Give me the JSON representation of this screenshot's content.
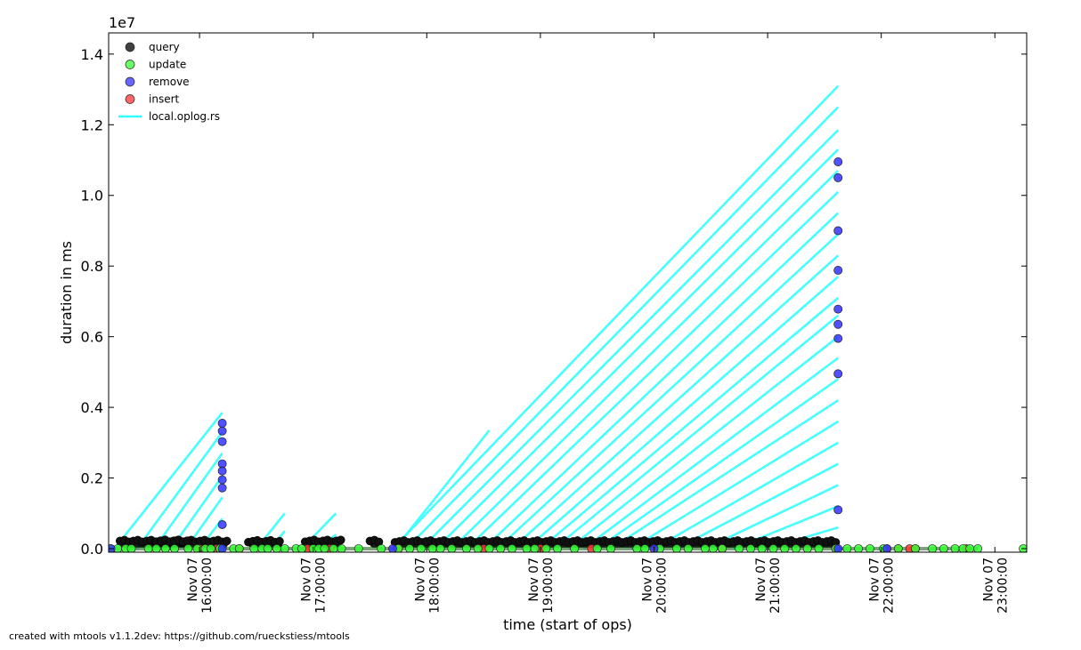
{
  "footer": "created with mtools v1.1.2dev: https://github.com/rueckstiess/mtools",
  "chart_data": {
    "type": "scatter",
    "title": "",
    "xlabel": "time (start of ops)",
    "ylabel": "duration in ms",
    "y_multiplier_label": "1e7",
    "x_tick_labels": [
      [
        "Nov 07",
        "16:00:00"
      ],
      [
        "Nov 07",
        "17:00:00"
      ],
      [
        "Nov 07",
        "18:00:00"
      ],
      [
        "Nov 07",
        "19:00:00"
      ],
      [
        "Nov 07",
        "20:00:00"
      ],
      [
        "Nov 07",
        "21:00:00"
      ],
      [
        "Nov 07",
        "22:00:00"
      ],
      [
        "Nov 07",
        "23:00:00"
      ]
    ],
    "x_ticks_hours": [
      16,
      17,
      18,
      19,
      20,
      21,
      22,
      23
    ],
    "xlim_hours": [
      15.2,
      23.28
    ],
    "y_tick_labels": [
      "0.0",
      "0.2",
      "0.4",
      "0.6",
      "0.8",
      "1.0",
      "1.2",
      "1.4"
    ],
    "y_ticks": [
      0.0,
      0.2,
      0.4,
      0.6,
      0.8,
      1.0,
      1.2,
      1.4
    ],
    "ylim": [
      -0.01,
      1.46
    ],
    "grid": false,
    "legend_position": "top-left",
    "series": [
      {
        "name": "query",
        "marker": "circle",
        "color": "#000000",
        "segments_hours": [
          [
            15.3,
            16.25
          ],
          [
            15.62,
            15.9
          ],
          [
            16.43,
            16.73
          ],
          [
            16.93,
            17.25
          ],
          [
            17.5,
            17.58
          ],
          [
            17.72,
            21.62
          ]
        ],
        "segment_value_approx": 0.02
      },
      {
        "name": "update",
        "marker": "circle",
        "color": "#33ff33",
        "x_hours": [
          15.22,
          15.28,
          15.35,
          15.4,
          15.55,
          15.62,
          15.7,
          15.78,
          15.9,
          15.98,
          16.05,
          16.1,
          16.18,
          16.3,
          16.35,
          16.48,
          16.55,
          16.6,
          16.68,
          16.75,
          16.85,
          16.9,
          17.0,
          17.05,
          17.1,
          17.18,
          17.25,
          17.4,
          17.6,
          17.75,
          17.85,
          17.95,
          18.05,
          18.12,
          18.22,
          18.35,
          18.45,
          18.55,
          18.65,
          18.75,
          18.88,
          18.95,
          19.05,
          19.15,
          19.3,
          19.5,
          19.62,
          19.85,
          19.92,
          20.05,
          20.2,
          20.3,
          20.45,
          20.52,
          20.6,
          20.75,
          20.85,
          20.95,
          21.05,
          21.15,
          21.25,
          21.35,
          21.45,
          21.6,
          21.7,
          21.8,
          21.9,
          22.02,
          22.15,
          22.3,
          22.45,
          22.55,
          22.65,
          22.72,
          22.78,
          22.85,
          23.25
        ],
        "values": [
          0,
          0,
          0,
          0,
          0,
          0,
          0,
          0,
          0,
          0,
          0,
          0,
          0,
          0,
          0,
          0,
          0,
          0,
          0,
          0,
          0,
          0,
          0,
          0,
          0,
          0,
          0,
          0,
          0,
          0,
          0,
          0,
          0,
          0,
          0,
          0,
          0,
          0,
          0,
          0,
          0,
          0,
          0,
          0,
          0,
          0,
          0,
          0,
          0,
          0,
          0,
          0,
          0,
          0,
          0,
          0,
          0,
          0,
          0,
          0,
          0,
          0,
          0,
          0,
          0,
          0,
          0,
          0,
          0,
          0,
          0,
          0,
          0,
          0,
          0,
          0,
          0
        ]
      },
      {
        "name": "remove",
        "marker": "circle",
        "color": "#3333ff",
        "x_hours": [
          16.2,
          16.2,
          16.2,
          16.2,
          16.2,
          16.2,
          16.2,
          16.2,
          16.2,
          21.62,
          21.62,
          21.62,
          21.62,
          21.62,
          21.62,
          21.62,
          21.62,
          21.62,
          21.62,
          15.22,
          17.7,
          20.0,
          22.05
        ],
        "values": [
          0.355,
          0.333,
          0.303,
          0.24,
          0.22,
          0.195,
          0.172,
          0.068,
          0.0,
          1.095,
          1.05,
          0.9,
          0.788,
          0.678,
          0.635,
          0.595,
          0.495,
          0.11,
          0.0,
          0.0,
          0.0,
          0.0,
          0.0
        ]
      },
      {
        "name": "insert",
        "marker": "circle",
        "color": "#ff3333",
        "x_hours": [
          16.0,
          16.15,
          16.35,
          16.95,
          17.15,
          17.75,
          18.5,
          19.0,
          19.45,
          20.6,
          21.6,
          22.05,
          22.15,
          22.25,
          22.3,
          22.75
        ],
        "values": [
          0,
          0,
          0,
          0,
          0,
          0,
          0,
          0,
          0,
          0,
          0,
          0,
          0,
          0,
          0,
          0
        ]
      },
      {
        "name": "local.oplog.rs",
        "marker": "line",
        "color": "#33ffff",
        "lines_hours": [
          [
            15.25,
            16.2,
            0.385
          ],
          [
            15.45,
            16.2,
            0.33
          ],
          [
            15.6,
            16.2,
            0.27
          ],
          [
            15.75,
            16.2,
            0.205
          ],
          [
            15.88,
            16.2,
            0.145
          ],
          [
            16.0,
            16.2,
            0.085
          ],
          [
            16.5,
            16.75,
            0.1
          ],
          [
            16.62,
            16.75,
            0.05
          ],
          [
            16.9,
            17.2,
            0.1
          ],
          [
            17.05,
            17.2,
            0.04
          ],
          [
            17.72,
            18.55,
            0.335
          ],
          [
            17.7,
            21.62,
            1.31
          ],
          [
            17.82,
            21.62,
            1.25
          ],
          [
            17.95,
            21.62,
            1.185
          ],
          [
            18.08,
            21.62,
            1.13
          ],
          [
            18.22,
            21.62,
            1.07
          ],
          [
            18.35,
            21.62,
            1.01
          ],
          [
            18.5,
            21.62,
            0.95
          ],
          [
            18.62,
            21.62,
            0.89
          ],
          [
            18.75,
            21.62,
            0.83
          ],
          [
            18.88,
            21.62,
            0.77
          ],
          [
            19.0,
            21.62,
            0.71
          ],
          [
            19.12,
            21.62,
            0.66
          ],
          [
            19.25,
            21.62,
            0.6
          ],
          [
            19.38,
            21.62,
            0.54
          ],
          [
            19.5,
            21.62,
            0.48
          ],
          [
            19.62,
            21.62,
            0.42
          ],
          [
            19.8,
            21.62,
            0.36
          ],
          [
            20.0,
            21.62,
            0.3
          ],
          [
            20.2,
            21.62,
            0.24
          ],
          [
            20.45,
            21.62,
            0.18
          ],
          [
            20.7,
            21.62,
            0.12
          ],
          [
            21.0,
            21.62,
            0.06
          ]
        ]
      }
    ]
  }
}
